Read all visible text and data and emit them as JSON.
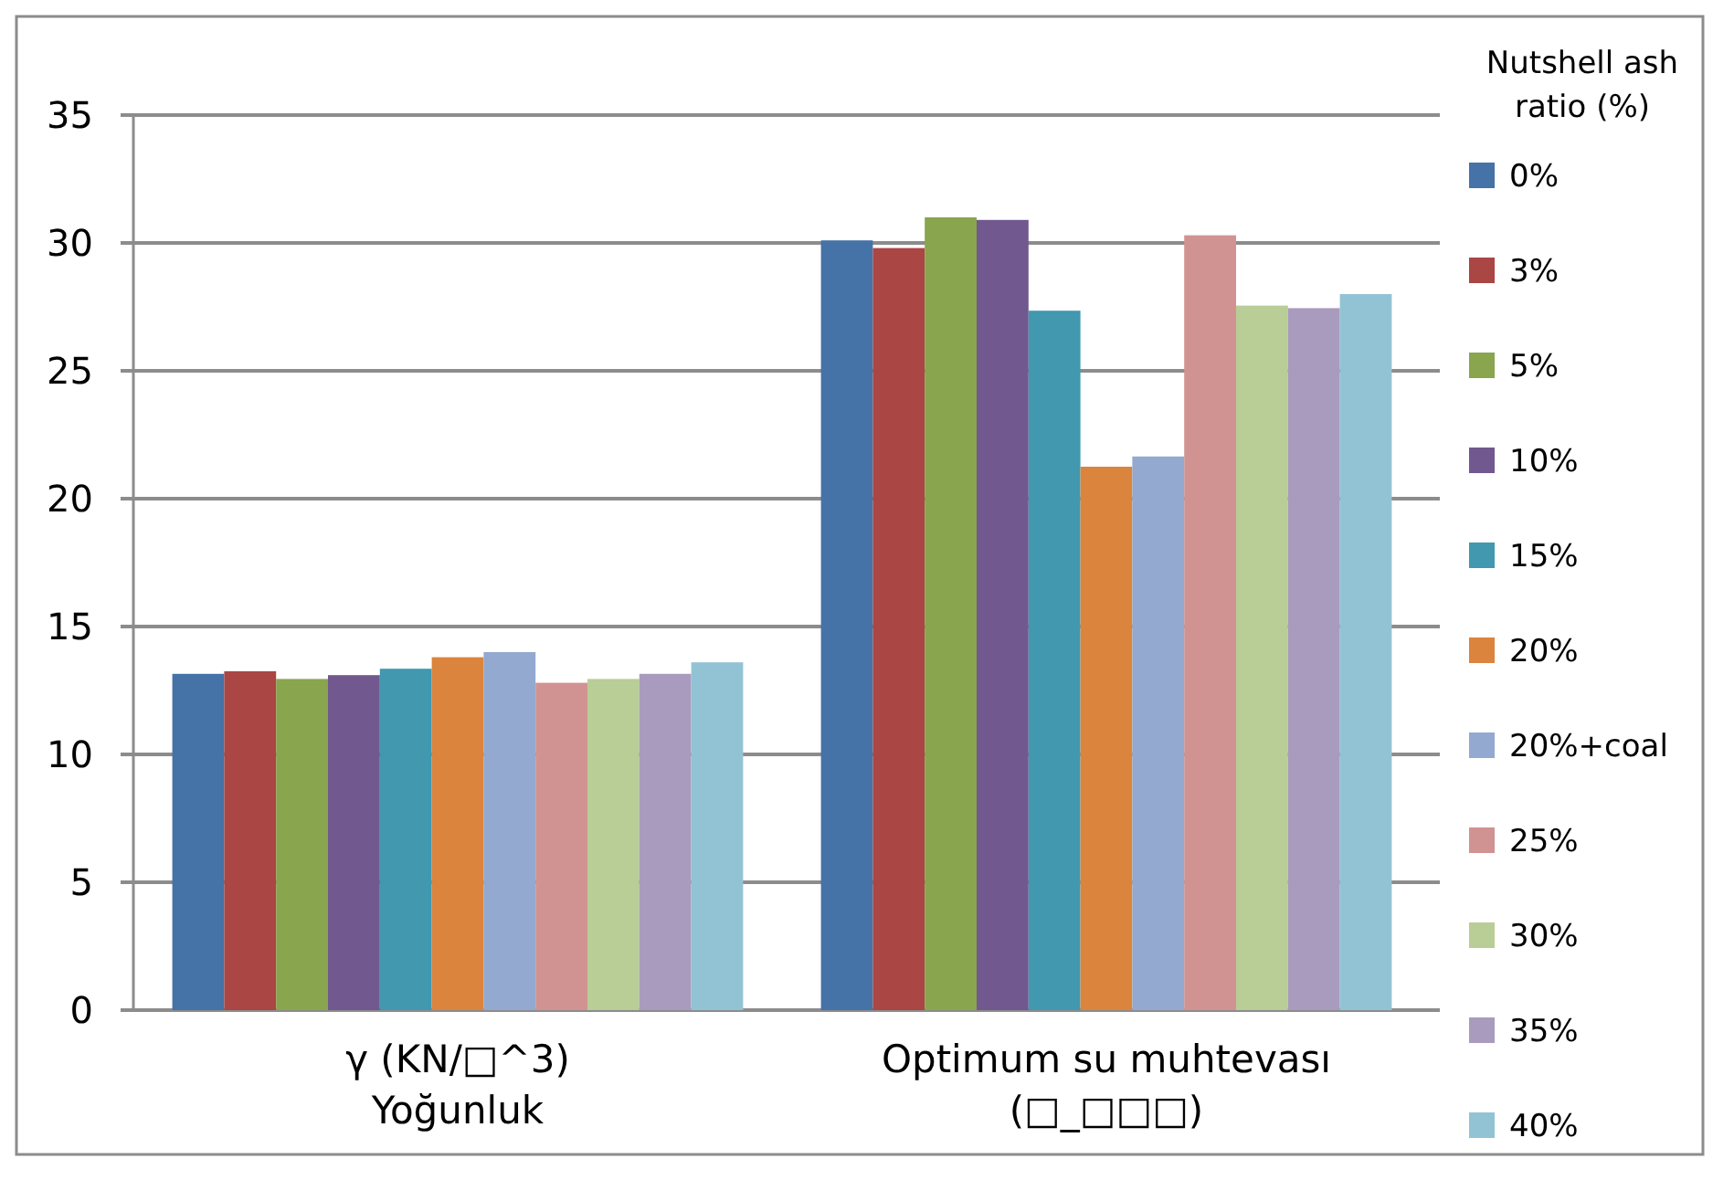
{
  "chart_data": {
    "type": "bar",
    "categories": [
      "γ  (KN/□^3)\nYoğunluk",
      "Optimum su muhtevası\n(□_□□□)"
    ],
    "legend_title": "Nutshell ash ratio (%)",
    "legend": "right",
    "grid": "y",
    "ylim": [
      0,
      35
    ],
    "yticks": [
      0,
      5,
      10,
      15,
      20,
      25,
      30,
      35
    ],
    "series": [
      {
        "name": "0%",
        "color": "#4572a7",
        "values": [
          13.15,
          30.1
        ]
      },
      {
        "name": "3%",
        "color": "#aa4643",
        "values": [
          13.25,
          29.8
        ]
      },
      {
        "name": "5%",
        "color": "#89a54e",
        "values": [
          12.95,
          31.0
        ]
      },
      {
        "name": "10%",
        "color": "#71588f",
        "values": [
          13.1,
          30.9
        ]
      },
      {
        "name": "15%",
        "color": "#4198af",
        "values": [
          13.35,
          27.35
        ]
      },
      {
        "name": "20%",
        "color": "#db843d",
        "values": [
          13.8,
          21.25
        ]
      },
      {
        "name": "20%+coal",
        "color": "#93a9cf",
        "values": [
          14.0,
          21.65
        ]
      },
      {
        "name": "25%",
        "color": "#d19392",
        "values": [
          12.8,
          30.3
        ]
      },
      {
        "name": "30%",
        "color": "#b9cd96",
        "values": [
          12.95,
          27.55
        ]
      },
      {
        "name": "35%",
        "color": "#a99bbd",
        "values": [
          13.15,
          27.45
        ]
      },
      {
        "name": "40%",
        "color": "#92c3d5",
        "values": [
          13.6,
          28.0
        ]
      }
    ]
  }
}
